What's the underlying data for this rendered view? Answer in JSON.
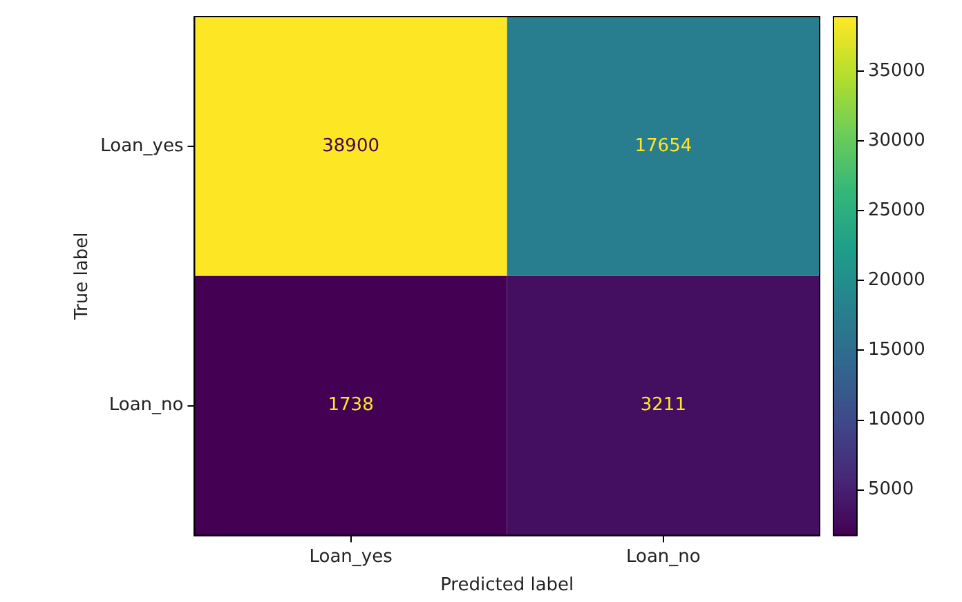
{
  "chart_data": {
    "type": "heatmap",
    "xlabel": "Predicted label",
    "ylabel": "True label",
    "categories": [
      "Loan_yes",
      "Loan_no"
    ],
    "y_categories": [
      "Loan_yes",
      "Loan_no"
    ],
    "cells": [
      [
        38900,
        17654
      ],
      [
        1738,
        3211
      ]
    ],
    "clim": [
      1738,
      38900
    ],
    "cticks": [
      5000,
      10000,
      15000,
      20000,
      25000,
      30000,
      35000
    ],
    "data_labels": true
  }
}
